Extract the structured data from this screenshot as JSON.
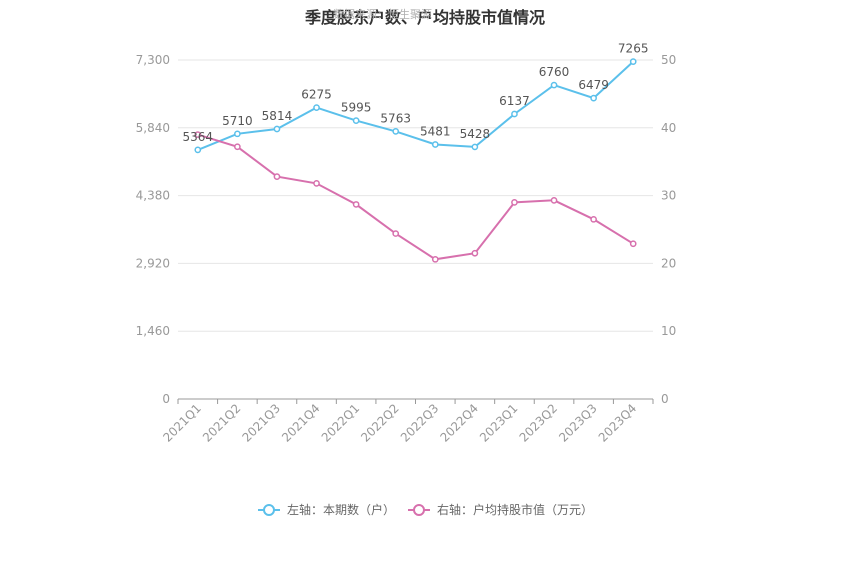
{
  "title": "季度股东户数、户均持股市值情况",
  "watermark": "数据来源：恒生聚源",
  "chart_data": {
    "type": "line",
    "categories": [
      "2021Q1",
      "2021Q2",
      "2021Q3",
      "2021Q4",
      "2022Q1",
      "2022Q2",
      "2022Q3",
      "2022Q4",
      "2023Q1",
      "2023Q2",
      "2023Q3",
      "2023Q4"
    ],
    "y_left": {
      "ticks": [
        "0",
        "1,460",
        "2,920",
        "4,380",
        "5,840",
        "7,300"
      ],
      "min": 0,
      "max": 7300
    },
    "y_right": {
      "ticks": [
        "0",
        "10",
        "20",
        "30",
        "40",
        "50"
      ],
      "min": 0,
      "max": 50
    },
    "grid": true,
    "legend_position": "bottom-center",
    "series": [
      {
        "name": "左轴：本期数（户）",
        "axis": "left",
        "color": "#5bc0eb",
        "values": [
          5364,
          5710,
          5814,
          6275,
          5995,
          5763,
          5481,
          5428,
          6137,
          6760,
          6479,
          7265
        ],
        "labels": [
          "5364",
          "5710",
          "5814",
          "6275",
          "5995",
          "5763",
          "5481",
          "5428",
          "6137",
          "6760",
          "6479",
          "7265"
        ]
      },
      {
        "name": "右轴：户均持股市值（万元）",
        "axis": "right",
        "color": "#d770ad",
        "values": [
          39.0,
          37.2,
          32.8,
          31.8,
          28.7,
          24.4,
          20.6,
          21.5,
          29.0,
          29.3,
          26.5,
          22.9
        ]
      }
    ]
  }
}
